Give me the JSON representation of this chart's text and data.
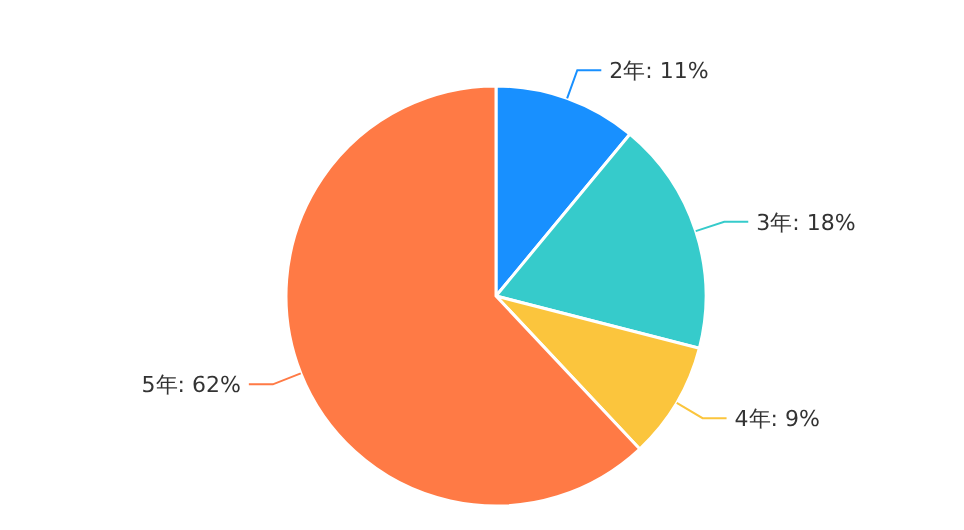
{
  "chart_data": {
    "type": "pie",
    "categories": [
      "2年: 11%",
      "3年: 18%",
      "4年: 9%",
      "5年: 62%"
    ],
    "values": [
      11,
      18,
      9,
      62
    ],
    "colors": [
      "#1890ff",
      "#36cbcb",
      "#fbc53d",
      "#ff7a45"
    ]
  }
}
